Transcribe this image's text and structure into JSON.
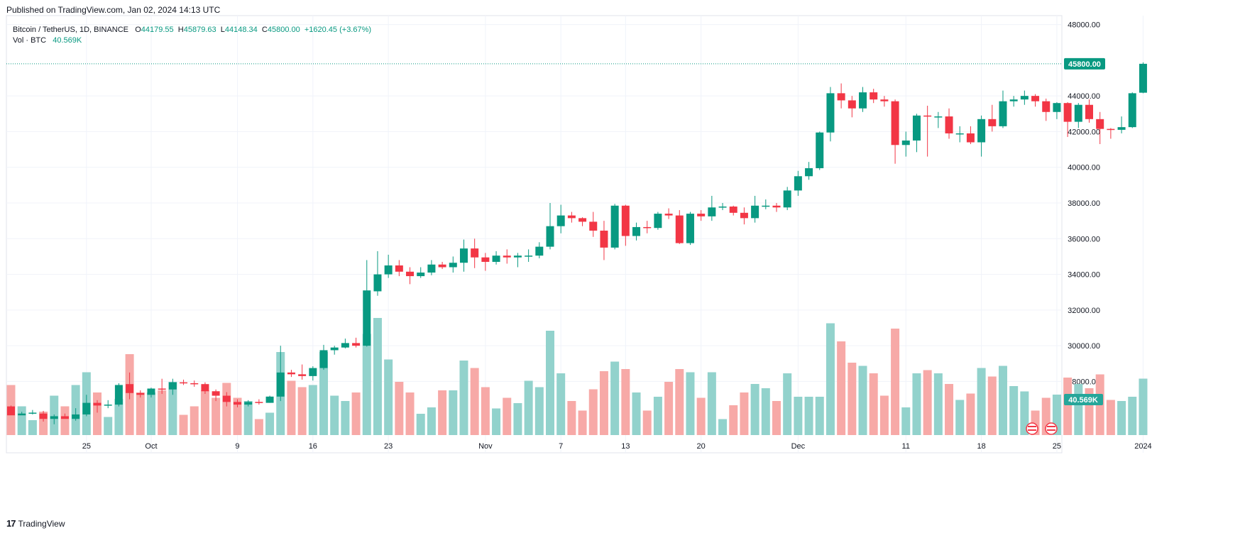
{
  "header": {
    "published": "Published on TradingView.com, Jan 02, 2024 14:13 UTC"
  },
  "footer": {
    "logo_text": "TradingView"
  },
  "legend": {
    "symbol": "Bitcoin / TetherUS, 1D, BINANCE",
    "o_label": "O",
    "o_value": "44179.55",
    "h_label": "H",
    "h_value": "45879.63",
    "l_label": "L",
    "l_value": "44148.34",
    "c_label": "C",
    "c_value": "45800.00",
    "change": "+1620.45 (+3.67%)",
    "vol_label": "Vol · BTC",
    "vol_value": "40.569K"
  },
  "colors": {
    "up": "#089981",
    "down": "#f23645",
    "up_vol": "#92d2cc",
    "down_vol": "#f7a9a7",
    "grid": "#f0f3fa",
    "axis_text": "#131722"
  },
  "chart_data": {
    "type": "candlestick",
    "ylim": [
      24000,
      48500
    ],
    "y_ticks": [
      "28000.00",
      "30000.00",
      "32000.00",
      "34000.00",
      "36000.00",
      "38000.00",
      "40000.00",
      "42000.00",
      "44000.00",
      "48000.00"
    ],
    "x_tick_labels": [
      "25",
      "Oct",
      "9",
      "16",
      "23",
      "Nov",
      "7",
      "13",
      "20",
      "Dec",
      "11",
      "18",
      "25",
      "2024"
    ],
    "x_tick_index": [
      7,
      13,
      21,
      28,
      35,
      44,
      51,
      57,
      64,
      73,
      83,
      90,
      97,
      105
    ],
    "last_price_label": "45800.00",
    "last_price": 45800,
    "last_volume_label": "40.569K",
    "candles": [
      {
        "o": 26600,
        "h": 26650,
        "l": 26300,
        "c": 26100,
        "v": 0.47
      },
      {
        "o": 26100,
        "h": 26150,
        "l": 26300,
        "c": 26200,
        "v": 0.27
      },
      {
        "o": 26250,
        "h": 26400,
        "l": 26150,
        "c": 26250,
        "v": 0.14
      },
      {
        "o": 26200,
        "h": 26350,
        "l": 25750,
        "c": 25900,
        "v": 0.22
      },
      {
        "o": 25900,
        "h": 26150,
        "l": 25600,
        "c": 26050,
        "v": 0.37
      },
      {
        "o": 26050,
        "h": 26200,
        "l": 25950,
        "c": 25900,
        "v": 0.27
      },
      {
        "o": 25900,
        "h": 26500,
        "l": 25800,
        "c": 26150,
        "v": 0.47
      },
      {
        "o": 26150,
        "h": 27250,
        "l": 26050,
        "c": 26800,
        "v": 0.59
      },
      {
        "o": 26800,
        "h": 26950,
        "l": 26250,
        "c": 26650,
        "v": 0.4
      },
      {
        "o": 26650,
        "h": 26950,
        "l": 26500,
        "c": 26700,
        "v": 0.17
      },
      {
        "o": 26700,
        "h": 27900,
        "l": 26600,
        "c": 27800,
        "v": 0.34
      },
      {
        "o": 27850,
        "h": 28500,
        "l": 27000,
        "c": 27350,
        "v": 0.76
      },
      {
        "o": 27350,
        "h": 27500,
        "l": 27100,
        "c": 27250,
        "v": 0.4
      },
      {
        "o": 27250,
        "h": 27650,
        "l": 27100,
        "c": 27600,
        "v": 0.4
      },
      {
        "o": 27600,
        "h": 28150,
        "l": 27300,
        "c": 27550,
        "v": 0.42
      },
      {
        "o": 27550,
        "h": 28150,
        "l": 27250,
        "c": 27950,
        "v": 0.5
      },
      {
        "o": 27950,
        "h": 28100,
        "l": 27800,
        "c": 27900,
        "v": 0.19
      },
      {
        "o": 27900,
        "h": 28050,
        "l": 27700,
        "c": 27850,
        "v": 0.27
      },
      {
        "o": 27850,
        "h": 27950,
        "l": 27300,
        "c": 27450,
        "v": 0.42
      },
      {
        "o": 27450,
        "h": 27550,
        "l": 26900,
        "c": 27200,
        "v": 0.35
      },
      {
        "o": 27200,
        "h": 27400,
        "l": 26600,
        "c": 26850,
        "v": 0.49
      },
      {
        "o": 26850,
        "h": 27000,
        "l": 26550,
        "c": 26700,
        "v": 0.35
      },
      {
        "o": 26700,
        "h": 26950,
        "l": 26600,
        "c": 26850,
        "v": 0.32
      },
      {
        "o": 26850,
        "h": 27000,
        "l": 26700,
        "c": 26800,
        "v": 0.15
      },
      {
        "o": 26800,
        "h": 27200,
        "l": 26800,
        "c": 27150,
        "v": 0.21
      },
      {
        "o": 27150,
        "h": 30000,
        "l": 26900,
        "c": 28500,
        "v": 0.78
      },
      {
        "o": 28500,
        "h": 28650,
        "l": 28250,
        "c": 28400,
        "v": 0.51
      },
      {
        "o": 28400,
        "h": 28950,
        "l": 28100,
        "c": 28300,
        "v": 0.45
      },
      {
        "o": 28300,
        "h": 28850,
        "l": 28050,
        "c": 28750,
        "v": 0.47
      },
      {
        "o": 28750,
        "h": 30050,
        "l": 28650,
        "c": 29750,
        "v": 0.78
      },
      {
        "o": 29750,
        "h": 30000,
        "l": 29500,
        "c": 29900,
        "v": 0.37
      },
      {
        "o": 29900,
        "h": 30400,
        "l": 29850,
        "c": 30150,
        "v": 0.32
      },
      {
        "o": 30150,
        "h": 30450,
        "l": 29900,
        "c": 30000,
        "v": 0.4
      },
      {
        "o": 30000,
        "h": 34800,
        "l": 29950,
        "c": 33100,
        "v": 0.95
      },
      {
        "o": 33050,
        "h": 35300,
        "l": 32800,
        "c": 34000,
        "v": 1.1
      },
      {
        "o": 34000,
        "h": 35100,
        "l": 33800,
        "c": 34500,
        "v": 0.71
      },
      {
        "o": 34500,
        "h": 34800,
        "l": 33900,
        "c": 34150,
        "v": 0.5
      },
      {
        "o": 34150,
        "h": 34400,
        "l": 33450,
        "c": 33900,
        "v": 0.4
      },
      {
        "o": 33900,
        "h": 34400,
        "l": 33800,
        "c": 34100,
        "v": 0.2
      },
      {
        "o": 34100,
        "h": 34800,
        "l": 33950,
        "c": 34550,
        "v": 0.26
      },
      {
        "o": 34550,
        "h": 34700,
        "l": 34300,
        "c": 34400,
        "v": 0.42
      },
      {
        "o": 34400,
        "h": 35000,
        "l": 34100,
        "c": 34650,
        "v": 0.42
      },
      {
        "o": 34650,
        "h": 35950,
        "l": 34150,
        "c": 35450,
        "v": 0.7
      },
      {
        "o": 35450,
        "h": 36000,
        "l": 34350,
        "c": 34950,
        "v": 0.63
      },
      {
        "o": 34950,
        "h": 35200,
        "l": 34200,
        "c": 34700,
        "v": 0.45
      },
      {
        "o": 34700,
        "h": 35300,
        "l": 34550,
        "c": 35050,
        "v": 0.25
      },
      {
        "o": 35050,
        "h": 35400,
        "l": 34600,
        "c": 34950,
        "v": 0.35
      },
      {
        "o": 34950,
        "h": 35200,
        "l": 34400,
        "c": 35050,
        "v": 0.3
      },
      {
        "o": 35050,
        "h": 35400,
        "l": 34700,
        "c": 35050,
        "v": 0.51
      },
      {
        "o": 35050,
        "h": 35800,
        "l": 34900,
        "c": 35550,
        "v": 0.45
      },
      {
        "o": 35550,
        "h": 38000,
        "l": 35400,
        "c": 36700,
        "v": 0.98
      },
      {
        "o": 36700,
        "h": 37900,
        "l": 36300,
        "c": 37300,
        "v": 0.58
      },
      {
        "o": 37300,
        "h": 37500,
        "l": 36900,
        "c": 37150,
        "v": 0.32
      },
      {
        "o": 37150,
        "h": 37200,
        "l": 36700,
        "c": 36950,
        "v": 0.23
      },
      {
        "o": 36950,
        "h": 37500,
        "l": 36100,
        "c": 36450,
        "v": 0.43
      },
      {
        "o": 36450,
        "h": 37000,
        "l": 34800,
        "c": 35500,
        "v": 0.6
      },
      {
        "o": 35500,
        "h": 37950,
        "l": 35400,
        "c": 37850,
        "v": 0.69
      },
      {
        "o": 37850,
        "h": 37900,
        "l": 35600,
        "c": 36150,
        "v": 0.62
      },
      {
        "o": 36150,
        "h": 36900,
        "l": 35900,
        "c": 36650,
        "v": 0.4
      },
      {
        "o": 36650,
        "h": 37000,
        "l": 36300,
        "c": 36600,
        "v": 0.23
      },
      {
        "o": 36600,
        "h": 37500,
        "l": 36500,
        "c": 37400,
        "v": 0.36
      },
      {
        "o": 37400,
        "h": 37700,
        "l": 37100,
        "c": 37300,
        "v": 0.5
      },
      {
        "o": 37300,
        "h": 37600,
        "l": 35700,
        "c": 35750,
        "v": 0.62
      },
      {
        "o": 35750,
        "h": 37500,
        "l": 35650,
        "c": 37400,
        "v": 0.59
      },
      {
        "o": 37400,
        "h": 37600,
        "l": 37000,
        "c": 37250,
        "v": 0.35
      },
      {
        "o": 37250,
        "h": 38400,
        "l": 37000,
        "c": 37750,
        "v": 0.59
      },
      {
        "o": 37750,
        "h": 38000,
        "l": 37600,
        "c": 37800,
        "v": 0.15
      },
      {
        "o": 37800,
        "h": 37850,
        "l": 37300,
        "c": 37450,
        "v": 0.28
      },
      {
        "o": 37450,
        "h": 37750,
        "l": 36800,
        "c": 37150,
        "v": 0.4
      },
      {
        "o": 37150,
        "h": 38400,
        "l": 36900,
        "c": 37850,
        "v": 0.48
      },
      {
        "o": 37850,
        "h": 38200,
        "l": 37650,
        "c": 37850,
        "v": 0.44
      },
      {
        "o": 37850,
        "h": 38000,
        "l": 37500,
        "c": 37750,
        "v": 0.32
      },
      {
        "o": 37750,
        "h": 38900,
        "l": 37600,
        "c": 38700,
        "v": 0.58
      },
      {
        "o": 38700,
        "h": 39800,
        "l": 38400,
        "c": 39500,
        "v": 0.36
      },
      {
        "o": 39500,
        "h": 40300,
        "l": 39300,
        "c": 39950,
        "v": 0.36
      },
      {
        "o": 39950,
        "h": 42000,
        "l": 39850,
        "c": 41950,
        "v": 0.36
      },
      {
        "o": 41950,
        "h": 44500,
        "l": 41450,
        "c": 44150,
        "v": 1.05
      },
      {
        "o": 44150,
        "h": 44700,
        "l": 43300,
        "c": 43750,
        "v": 0.88
      },
      {
        "o": 43750,
        "h": 44000,
        "l": 42800,
        "c": 43300,
        "v": 0.68
      },
      {
        "o": 43300,
        "h": 44500,
        "l": 43100,
        "c": 44200,
        "v": 0.65
      },
      {
        "o": 44200,
        "h": 44400,
        "l": 43600,
        "c": 43800,
        "v": 0.58
      },
      {
        "o": 43800,
        "h": 44000,
        "l": 43400,
        "c": 43700,
        "v": 0.37
      },
      {
        "o": 43700,
        "h": 43800,
        "l": 40200,
        "c": 41250,
        "v": 1.0
      },
      {
        "o": 41250,
        "h": 42000,
        "l": 40600,
        "c": 41500,
        "v": 0.26
      },
      {
        "o": 41500,
        "h": 43000,
        "l": 40850,
        "c": 42900,
        "v": 0.58
      },
      {
        "o": 42900,
        "h": 43450,
        "l": 40600,
        "c": 42850,
        "v": 0.61
      },
      {
        "o": 42850,
        "h": 43100,
        "l": 42200,
        "c": 42850,
        "v": 0.58
      },
      {
        "o": 42850,
        "h": 43300,
        "l": 41600,
        "c": 41900,
        "v": 0.48
      },
      {
        "o": 41900,
        "h": 42300,
        "l": 41400,
        "c": 41900,
        "v": 0.33
      },
      {
        "o": 41900,
        "h": 42300,
        "l": 41300,
        "c": 41400,
        "v": 0.39
      },
      {
        "o": 41400,
        "h": 42900,
        "l": 40600,
        "c": 42700,
        "v": 0.63
      },
      {
        "o": 42700,
        "h": 43500,
        "l": 42000,
        "c": 42300,
        "v": 0.55
      },
      {
        "o": 42300,
        "h": 44300,
        "l": 42200,
        "c": 43700,
        "v": 0.65
      },
      {
        "o": 43700,
        "h": 44000,
        "l": 43400,
        "c": 43800,
        "v": 0.46
      },
      {
        "o": 43800,
        "h": 44300,
        "l": 43500,
        "c": 44000,
        "v": 0.41
      },
      {
        "o": 44000,
        "h": 44100,
        "l": 43400,
        "c": 43700,
        "v": 0.23
      },
      {
        "o": 43700,
        "h": 43850,
        "l": 42600,
        "c": 43100,
        "v": 0.35
      },
      {
        "o": 43100,
        "h": 43650,
        "l": 42700,
        "c": 43600,
        "v": 0.38
      },
      {
        "o": 43600,
        "h": 43650,
        "l": 41700,
        "c": 42550,
        "v": 0.54
      },
      {
        "o": 42550,
        "h": 43600,
        "l": 42200,
        "c": 43500,
        "v": 0.48
      },
      {
        "o": 43500,
        "h": 43800,
        "l": 42500,
        "c": 42700,
        "v": 0.44
      },
      {
        "o": 42700,
        "h": 43100,
        "l": 41300,
        "c": 42150,
        "v": 0.57
      },
      {
        "o": 42150,
        "h": 42200,
        "l": 41600,
        "c": 42100,
        "v": 0.33
      },
      {
        "o": 42100,
        "h": 42850,
        "l": 41900,
        "c": 42250,
        "v": 0.32
      },
      {
        "o": 42250,
        "h": 44200,
        "l": 42200,
        "c": 44150,
        "v": 0.36
      },
      {
        "o": 44180,
        "h": 45880,
        "l": 44150,
        "c": 45800,
        "v": 0.53
      }
    ]
  }
}
